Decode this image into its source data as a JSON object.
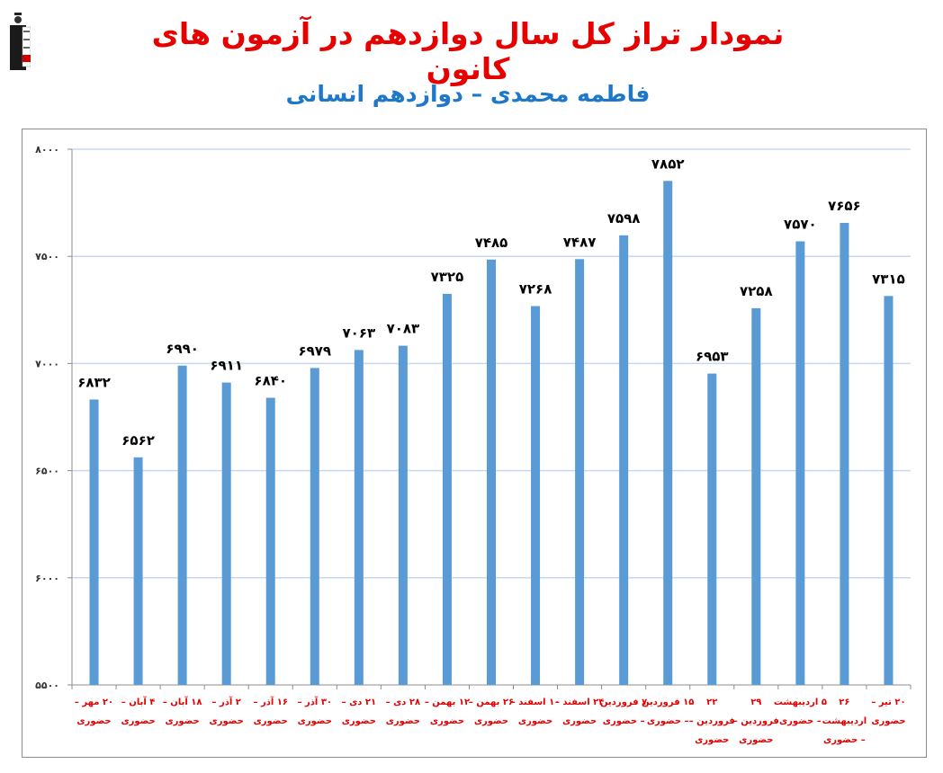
{
  "header": {
    "title": "نمودار تراز کل سال دوازدهم در آزمون های کانون",
    "subtitle": "فاطمه محمدی – دوازدهم انسانی",
    "logo_icon": "graduate-logo-icon"
  },
  "colors": {
    "title": "#e60000",
    "subtitle": "#1f77c9",
    "bar": "#5b9bd5",
    "gridline": "#c5daf1",
    "axis": "#8c8c8c",
    "xlabel": "#e60000",
    "datalabel": "#000000"
  },
  "chart_data": {
    "type": "bar",
    "title": "نمودار تراز کل سال دوازدهم در آزمون های کانون",
    "subtitle": "فاطمه محمدی – دوازدهم انسانی",
    "xlabel": "",
    "ylabel": "",
    "ylim": [
      5500,
      8000
    ],
    "yticks": [
      5500,
      6000,
      6500,
      7000,
      7500,
      8000
    ],
    "ytick_labels": [
      "۵۵۰۰",
      "۶۰۰۰",
      "۶۵۰۰",
      "۷۰۰۰",
      "۷۵۰۰",
      "۸۰۰۰"
    ],
    "grid": true,
    "legend": "none",
    "categories": [
      [
        "۲۰ مهر –",
        "حضوری"
      ],
      [
        "۴ آبان –",
        "حضوری"
      ],
      [
        "۱۸ آبان –",
        "حضوری"
      ],
      [
        "۲ آذر –",
        "حضوری"
      ],
      [
        "۱۶ آذر –",
        "حضوری"
      ],
      [
        "۳۰ آذر –",
        "حضوری"
      ],
      [
        "۲۱ دی –",
        "حضوری"
      ],
      [
        "۲۸ دی –",
        "حضوری"
      ],
      [
        "۱۲ بهمن –",
        "حضوری"
      ],
      [
        "۲۶ بهمن –",
        "حضوری"
      ],
      [
        "۱۰ اسفند –",
        "حضوری"
      ],
      [
        "۲۴ اسفند –",
        "حضوری"
      ],
      [
        "۷ فروردین",
        "– حضوری"
      ],
      [
        "۱۵ فروردین",
        "– حضوری"
      ],
      [
        "۲۲",
        "فروردین –",
        "حضوری"
      ],
      [
        "۲۹",
        "فروردین –",
        "حضوری"
      ],
      [
        "۵ اردیبهشت",
        "– حضوری"
      ],
      [
        "۲۶",
        "اردیبهشت",
        "– حضوری"
      ],
      [
        "۲۰ تیر –",
        "حضوری"
      ]
    ],
    "values": [
      6832,
      6562,
      6990,
      6911,
      6840,
      6979,
      7063,
      7083,
      7325,
      7485,
      7268,
      7487,
      7598,
      7852,
      6953,
      7258,
      7570,
      7656,
      7315
    ],
    "value_labels": [
      "۶۸۳۲",
      "۶۵۶۲",
      "۶۹۹۰",
      "۶۹۱۱",
      "۶۸۴۰",
      "۶۹۷۹",
      "۷۰۶۳",
      "۷۰۸۳",
      "۷۳۲۵",
      "۷۴۸۵",
      "۷۲۶۸",
      "۷۴۸۷",
      "۷۵۹۸",
      "۷۸۵۲",
      "۶۹۵۳",
      "۷۲۵۸",
      "۷۵۷۰",
      "۷۶۵۶",
      "۷۳۱۵"
    ]
  }
}
